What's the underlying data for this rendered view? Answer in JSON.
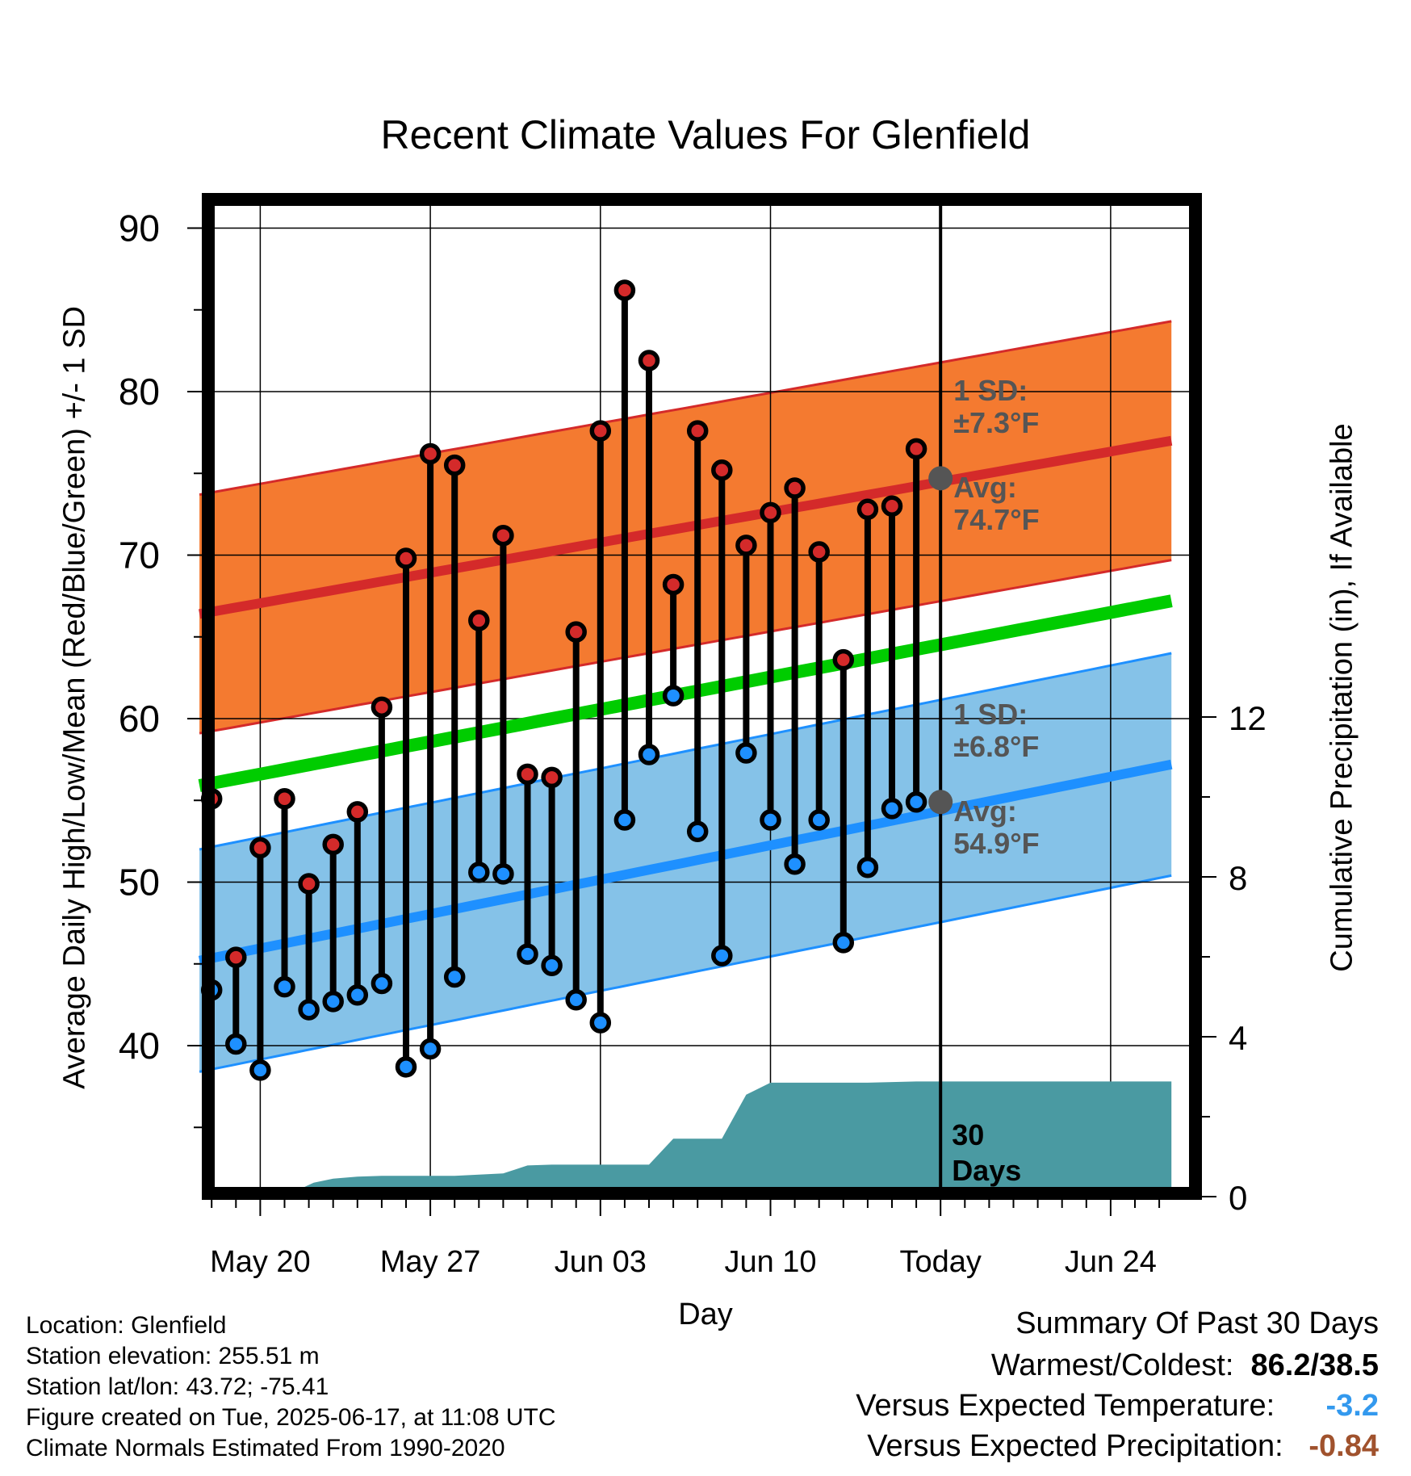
{
  "title": "Recent Climate Values For Glenfield",
  "ylabel": "Average Daily High/Low/Mean (Red/Blue/Green) +/- 1 SD",
  "y2label": "Cumulative Precipitation (in), If Available",
  "xlabel": "Day",
  "metadata": [
    "Location: Glenfield",
    "Station elevation: 255.51 m",
    "Station lat/lon: 43.72; -75.41",
    "Figure created on Tue, 2025-06-17, at 11:08 UTC",
    "Climate Normals Estimated From 1990-2020"
  ],
  "summary": {
    "heading": "Summary Of Past 30 Days",
    "warm_cold_label": "Warmest/Coldest:",
    "warm_cold_value": "86.2/38.5",
    "temp_label": "Versus Expected Temperature:",
    "temp_value": "-3.2",
    "precip_label": "Versus Expected Precipitation:",
    "precip_value": "-0.84"
  },
  "colors": {
    "high_band": "#f47a30",
    "high_line": "#d42a2a",
    "low_band": "#85c2e8",
    "low_line": "#1e90ff",
    "mean_line": "#00cc00",
    "precip": "#4a9aa2",
    "high_dot": "#d42a2a",
    "low_dot": "#1e90ff",
    "temp_value": "#3399ee",
    "precip_value": "#a0522d",
    "annotation": "#555555"
  },
  "chart_data": {
    "type": "line",
    "x_start": "May 18",
    "xlim_days": [
      -0.5,
      39.5
    ],
    "ylim": [
      30.5,
      91.5
    ],
    "y2lim": [
      0,
      24.5
    ],
    "x_ticks": [
      {
        "day": 2,
        "label": "May 20"
      },
      {
        "day": 9,
        "label": "May 27"
      },
      {
        "day": 16,
        "label": "Jun 03"
      },
      {
        "day": 23,
        "label": "Jun 10"
      },
      {
        "day": 30,
        "label": "Today"
      },
      {
        "day": 37,
        "label": "Jun 24"
      }
    ],
    "y_ticks": [
      40,
      50,
      60,
      70,
      80,
      90
    ],
    "y2_ticks": [
      0,
      4,
      8,
      12
    ],
    "today_day": 30,
    "today_label": "30\nDays",
    "daily_highs": [
      55.1,
      45.4,
      52.1,
      55.1,
      49.9,
      52.3,
      54.3,
      60.7,
      69.8,
      76.2,
      75.5,
      66.0,
      71.2,
      56.6,
      56.4,
      65.3,
      77.6,
      86.2,
      81.9,
      68.2,
      77.6,
      75.2,
      70.6,
      72.6,
      74.1,
      70.2,
      63.6,
      72.8,
      73.0,
      76.5
    ],
    "daily_lows": [
      43.4,
      40.1,
      38.5,
      43.6,
      42.2,
      42.7,
      43.1,
      43.8,
      38.7,
      39.8,
      44.2,
      50.6,
      50.5,
      45.6,
      44.9,
      42.8,
      41.4,
      53.8,
      57.8,
      61.4,
      53.1,
      45.5,
      57.9,
      53.8,
      51.1,
      53.8,
      46.3,
      50.9,
      54.5,
      54.9
    ],
    "normal_high": {
      "start": 66.4,
      "end": 77.0,
      "sd": 7.3
    },
    "normal_low": {
      "start": 45.2,
      "end": 57.2,
      "sd": 6.8
    },
    "normal_mean": {
      "start": 55.9,
      "end": 67.2
    },
    "annotations": {
      "high_sd": "1 SD:",
      "high_sd_value": "±7.3°F",
      "high_avg": "Avg:",
      "high_avg_value": "74.7°F",
      "high_avg_temp": 74.7,
      "low_sd": "1 SD:",
      "low_sd_value": "±6.8°F",
      "low_avg": "Avg:",
      "low_avg_value": "54.9°F",
      "low_avg_temp": 54.9
    },
    "cumulative_precip_in": [
      [
        -0.5,
        0.0
      ],
      [
        2,
        0.0
      ],
      [
        2.7,
        0.12
      ],
      [
        3.5,
        0.15
      ],
      [
        4.2,
        0.35
      ],
      [
        5,
        0.45
      ],
      [
        6,
        0.5
      ],
      [
        7,
        0.52
      ],
      [
        10,
        0.52
      ],
      [
        11,
        0.55
      ],
      [
        12,
        0.58
      ],
      [
        13,
        0.78
      ],
      [
        14,
        0.8
      ],
      [
        15,
        0.8
      ],
      [
        16,
        0.8
      ],
      [
        18,
        0.8
      ],
      [
        19,
        1.45
      ],
      [
        21,
        1.45
      ],
      [
        22,
        2.55
      ],
      [
        23,
        2.85
      ],
      [
        24,
        2.85
      ],
      [
        27,
        2.85
      ],
      [
        29,
        2.88
      ],
      [
        30,
        2.88
      ],
      [
        39.5,
        2.88
      ]
    ]
  }
}
